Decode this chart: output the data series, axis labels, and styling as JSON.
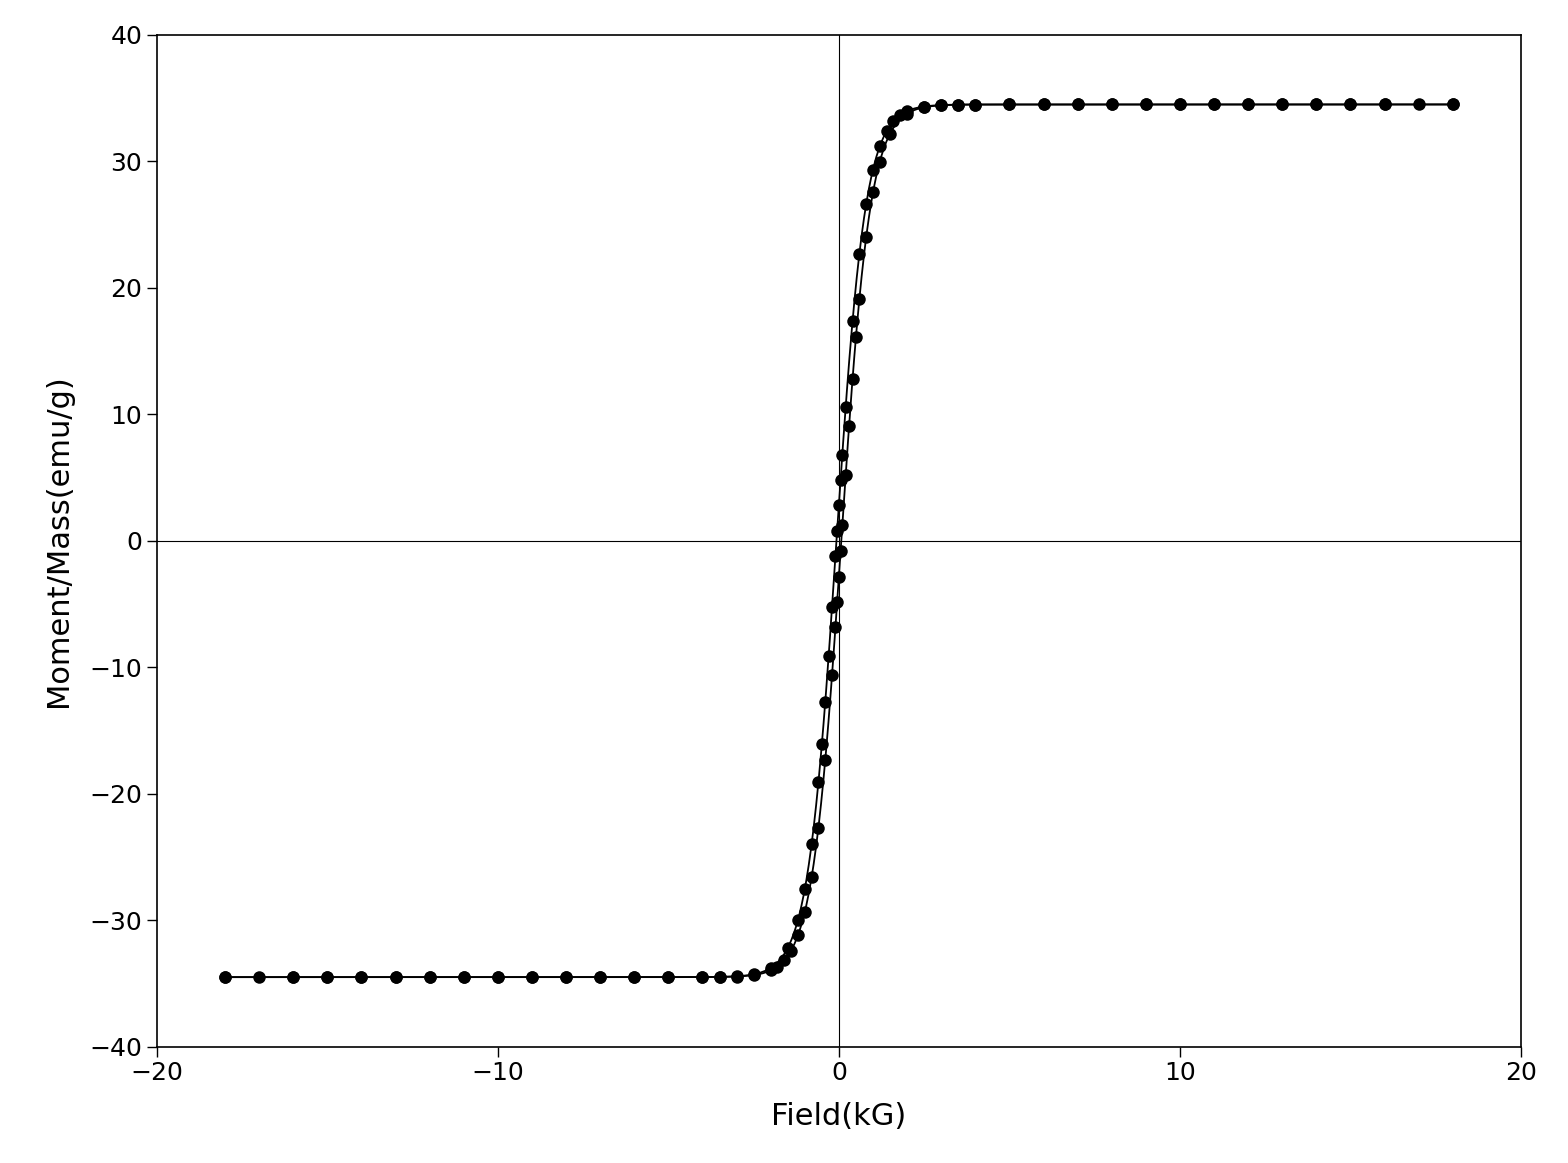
{
  "title": "",
  "xlabel": "Field(kG)",
  "ylabel": "Moment/Mass(emu/g)",
  "xlim": [
    -20,
    20
  ],
  "ylim": [
    -40,
    40
  ],
  "xticks": [
    -20,
    -10,
    0,
    10,
    20
  ],
  "yticks": [
    -40,
    -30,
    -20,
    -10,
    0,
    10,
    20,
    30,
    40
  ],
  "background_color": "#ffffff",
  "line_color": "#000000",
  "marker_color": "#000000",
  "marker_size": 9,
  "line_width": 1.3,
  "Ms": 34.5,
  "slope": 0.85,
  "Hc_up": 0.07,
  "Hc_dn": -0.07,
  "xlabel_fontsize": 22,
  "ylabel_fontsize": 22,
  "tick_fontsize": 18
}
